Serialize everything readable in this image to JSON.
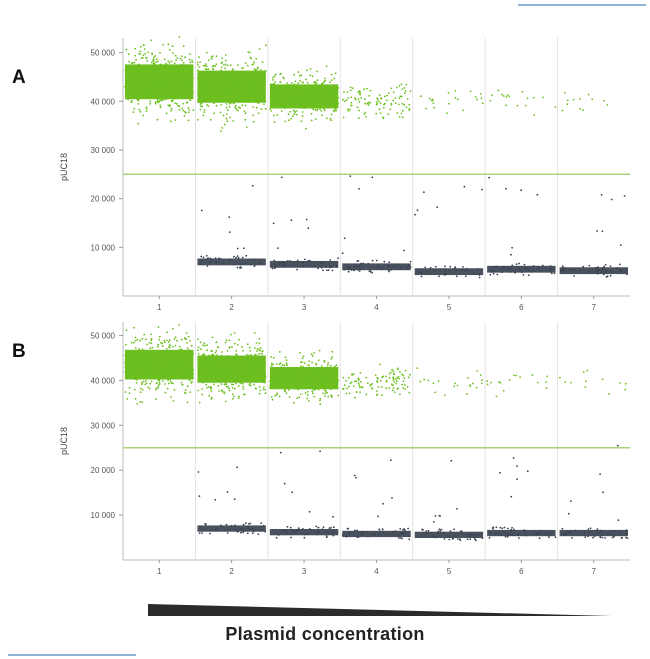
{
  "caption": "Plasmid concentration",
  "colors": {
    "positive": "#6cbf1f",
    "negative": "#3a4150",
    "threshold": "#a9d27a",
    "wedge": "#2b2b2b"
  },
  "chart_data": [
    {
      "type": "scatter",
      "panel_label": "A",
      "ylabel": "pUC18",
      "ylim": [
        0,
        53000
      ],
      "yticks": [
        10000,
        20000,
        30000,
        40000,
        50000
      ],
      "ytick_labels": [
        "10 000",
        "20 000",
        "30 000",
        "40 000",
        "50 000"
      ],
      "wells": [
        "1",
        "2",
        "3",
        "4",
        "5",
        "6",
        "7"
      ],
      "threshold": 25000,
      "series": [
        {
          "class": "positive",
          "center": [
            44000,
            43000,
            41000,
            40000,
            40000,
            40000,
            39500
          ],
          "spread": [
            6500,
            6000,
            4500,
            3000,
            2500,
            2500,
            2500
          ],
          "density": [
            1.0,
            0.95,
            0.7,
            0.25,
            0.04,
            0.03,
            0.015
          ]
        },
        {
          "class": "negative",
          "center": [
            7500,
            7000,
            6500,
            6000,
            5000,
            5500,
            5200
          ],
          "spread": [
            0,
            500,
            500,
            500,
            600,
            600,
            600
          ],
          "density": [
            0.0,
            0.8,
            0.9,
            0.95,
            1.0,
            1.0,
            1.0
          ]
        }
      ]
    },
    {
      "type": "scatter",
      "panel_label": "B",
      "ylabel": "pUC18",
      "ylim": [
        0,
        53000
      ],
      "yticks": [
        10000,
        20000,
        30000,
        40000,
        50000
      ],
      "ytick_labels": [
        "10 000",
        "20 000",
        "30 000",
        "40 000",
        "50 000"
      ],
      "wells": [
        "1",
        "2",
        "3",
        "4",
        "5",
        "6",
        "7"
      ],
      "threshold": 25000,
      "series": [
        {
          "class": "positive",
          "center": [
            43500,
            42500,
            40500,
            39500,
            40000,
            40000,
            39500
          ],
          "spread": [
            6000,
            5500,
            4500,
            3000,
            2500,
            2500,
            2500
          ],
          "density": [
            1.0,
            0.95,
            0.7,
            0.25,
            0.04,
            0.025,
            0.015
          ]
        },
        {
          "class": "negative",
          "center": [
            7000,
            7000,
            6200,
            5800,
            5600,
            6000,
            6000
          ],
          "spread": [
            0,
            500,
            500,
            500,
            600,
            600,
            600
          ],
          "density": [
            0.0,
            0.8,
            0.9,
            0.95,
            1.0,
            1.0,
            1.0
          ]
        }
      ]
    }
  ]
}
